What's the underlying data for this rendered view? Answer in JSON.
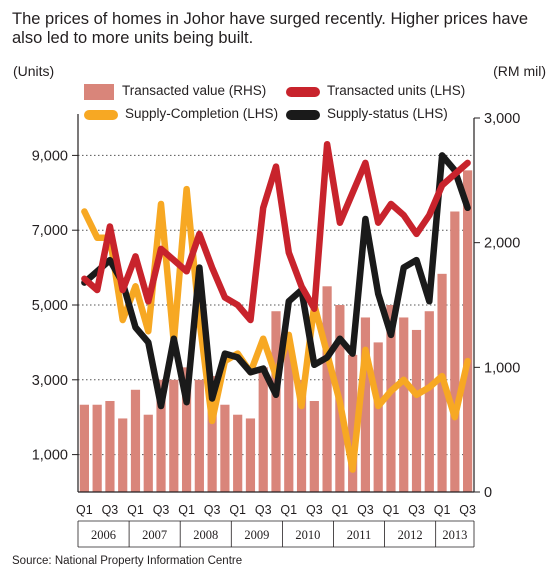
{
  "title": "The prices of homes in Johor have surged recently. Higher prices have also led to more units being built.",
  "source": "Source: National Property Information Centre",
  "colors": {
    "transacted_value": "#d9857a",
    "transacted_units": "#c8232c",
    "supply_completion": "#f7a823",
    "supply_status": "#1a1a1a"
  },
  "chart_data": {
    "type": "bar+line",
    "left_axis_label": "(Units)",
    "right_axis_label": "(RM mil)",
    "left_ylim": [
      0,
      10000
    ],
    "left_ticks": [
      "1,000",
      "3,000",
      "5,000",
      "7,000",
      "9,000"
    ],
    "left_tick_values": [
      1000,
      3000,
      5000,
      7000,
      9000
    ],
    "right_ylim": [
      0,
      3000
    ],
    "right_ticks": [
      "0",
      "1,000",
      "2,000",
      "3,000"
    ],
    "right_tick_values": [
      0,
      1000,
      2000,
      3000
    ],
    "quarter_ticks": [
      "Q1",
      "Q3",
      "Q1",
      "Q3",
      "Q1",
      "Q3",
      "Q1",
      "Q3",
      "Q1",
      "Q3",
      "Q1",
      "Q3",
      "Q1",
      "Q3",
      "Q1",
      "Q3"
    ],
    "years": [
      "2006",
      "2007",
      "2008",
      "2009",
      "2010",
      "2011",
      "2012",
      "2013"
    ],
    "categories": [
      "2006 Q1",
      "2006 Q2",
      "2006 Q3",
      "2006 Q4",
      "2007 Q1",
      "2007 Q2",
      "2007 Q3",
      "2007 Q4",
      "2008 Q1",
      "2008 Q2",
      "2008 Q3",
      "2008 Q4",
      "2009 Q1",
      "2009 Q2",
      "2009 Q3",
      "2009 Q4",
      "2010 Q1",
      "2010 Q2",
      "2010 Q3",
      "2010 Q4",
      "2011 Q1",
      "2011 Q2",
      "2011 Q3",
      "2011 Q4",
      "2012 Q1",
      "2012 Q2",
      "2012 Q3",
      "2012 Q4",
      "2013 Q1",
      "2013 Q2",
      "2013 Q3"
    ],
    "series": [
      {
        "name": "Transacted value (RHS)",
        "type": "bar",
        "axis": "right",
        "values": [
          700,
          700,
          730,
          590,
          820,
          620,
          900,
          900,
          1000,
          900,
          930,
          700,
          620,
          590,
          1000,
          1450,
          1150,
          900,
          730,
          1650,
          1500,
          1100,
          1400,
          1200,
          1500,
          1400,
          1300,
          1450,
          1750,
          2250,
          2580
        ]
      },
      {
        "name": "Transacted units (LHS)",
        "type": "line",
        "axis": "left",
        "values": [
          5700,
          5400,
          7100,
          5400,
          6300,
          5100,
          6500,
          6200,
          5900,
          6900,
          6000,
          5200,
          5000,
          4600,
          7600,
          8700,
          6400,
          5500,
          4900,
          9300,
          7200,
          8000,
          8800,
          7200,
          7700,
          7400,
          6900,
          7400,
          8200,
          8500,
          8800
        ]
      },
      {
        "name": "Supply-Completion (LHS)",
        "type": "line",
        "axis": "left",
        "values": [
          7500,
          6800,
          6800,
          4600,
          5500,
          4300,
          7700,
          4000,
          8100,
          4600,
          1900,
          3500,
          3700,
          3200,
          4100,
          3100,
          4200,
          2300,
          5000,
          3700,
          2400,
          600,
          3800,
          2300,
          2700,
          3000,
          2600,
          2800,
          3100,
          2000,
          3500
        ]
      },
      {
        "name": "Supply-status (LHS)",
        "type": "line",
        "axis": "left",
        "values": [
          5600,
          5900,
          6200,
          5600,
          4400,
          4000,
          2300,
          4100,
          2400,
          6000,
          2500,
          3700,
          3600,
          3200,
          3300,
          2600,
          5100,
          5400,
          3400,
          3600,
          4100,
          3700,
          7300,
          5300,
          4200,
          6000,
          6200,
          5100,
          9000,
          8600,
          7600
        ]
      }
    ]
  }
}
